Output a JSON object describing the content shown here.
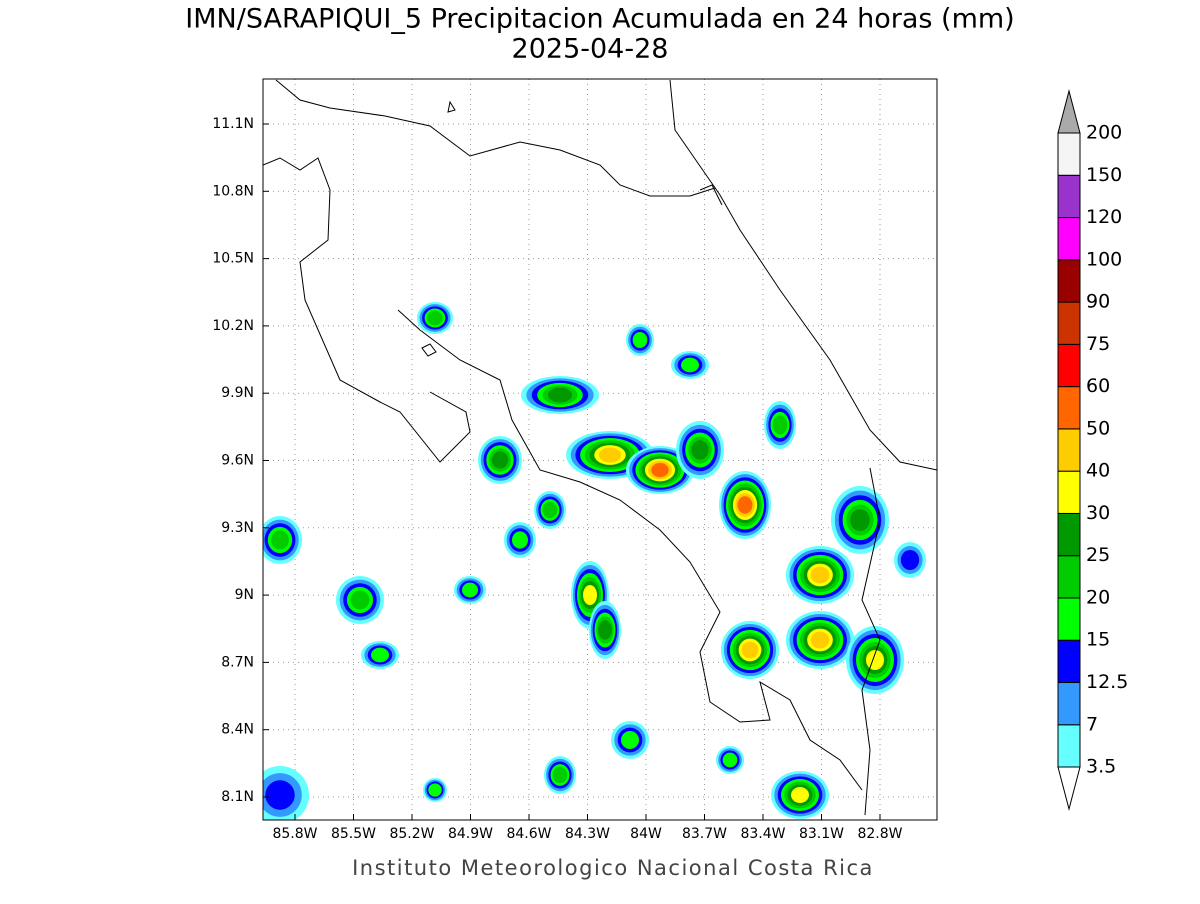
{
  "header": {
    "title": "IMN/SARAPIQUI_5 Precipitacion Acumulada en 24 horas (mm)",
    "date": "2025-04-28"
  },
  "map": {
    "lon_labels": [
      "85.8W",
      "85.5W",
      "85.2W",
      "84.9W",
      "84.6W",
      "84.3W",
      "84W",
      "83.7W",
      "83.4W",
      "83.1W",
      "82.8W"
    ],
    "lat_labels": [
      "11.1N",
      "10.8N",
      "10.5N",
      "10.2N",
      "9.9N",
      "9.6N",
      "9.3N",
      "9N",
      "8.7N",
      "8.4N",
      "8.1N"
    ]
  },
  "colorbar": {
    "levels": [
      3.5,
      7,
      12.5,
      15,
      20,
      25,
      30,
      40,
      50,
      60,
      75,
      90,
      100,
      120,
      150,
      200
    ],
    "colors": [
      "#66ffff",
      "#3399ff",
      "#0000ff",
      "#00ff00",
      "#00cc00",
      "#009900",
      "#ffff00",
      "#ffcc00",
      "#ff6600",
      "#ff0000",
      "#cc3300",
      "#990000",
      "#ff00ff",
      "#9933cc",
      "#f5f5f5"
    ],
    "over_color": "#aaaaaa",
    "under_color": "#ffffff"
  },
  "footer": "Instituto Meteorologico Nacional Costa Rica"
}
